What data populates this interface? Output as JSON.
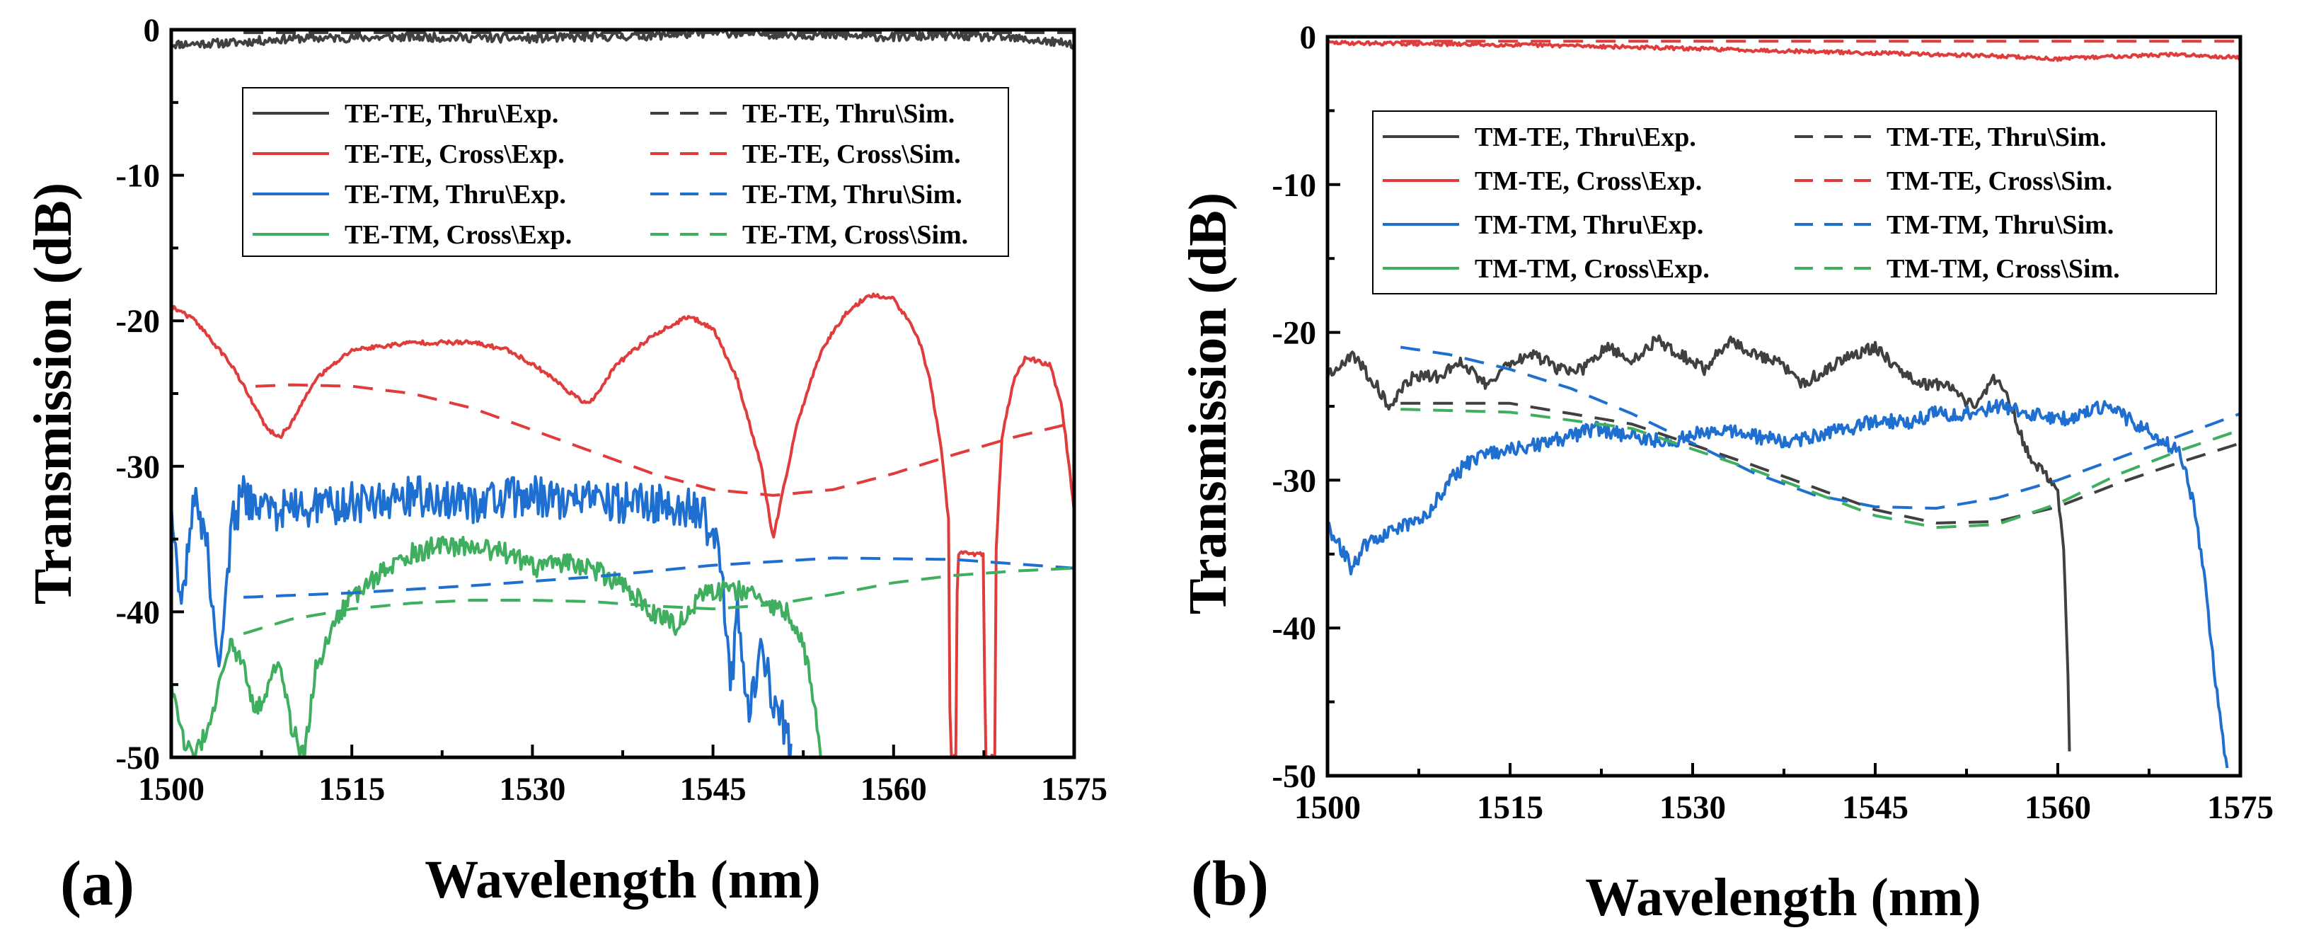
{
  "chart_data": [
    {
      "panel_label": "(a)",
      "type": "line",
      "xlabel": "Wavelength (nm)",
      "ylabel": "Transmission (dB)",
      "xlim": [
        1500,
        1575
      ],
      "ylim": [
        -50,
        0
      ],
      "xticks": [
        "1500",
        "1515",
        "1530",
        "1545",
        "1560",
        "1575"
      ],
      "yticks": [
        "0",
        "-10",
        "-20",
        "-30",
        "-40",
        "-50"
      ],
      "legend_position": "top",
      "series": [
        {
          "name": "TE-TE, Thru\\Exp.",
          "color": "#404040",
          "style": "solid",
          "noise": 0.3,
          "x": [
            1500,
            1505,
            1510,
            1520,
            1530,
            1540,
            1545,
            1550,
            1555,
            1560,
            1565,
            1570,
            1575
          ],
          "y": [
            -1,
            -0.9,
            -0.6,
            -0.5,
            -0.6,
            -0.4,
            -0.2,
            -0.3,
            -0.4,
            -0.5,
            -0.4,
            -0.6,
            -1
          ]
        },
        {
          "name": "TE-TE, Cross\\Exp.",
          "color": "#e03c3c",
          "style": "solid",
          "noise": 0.15,
          "x": [
            1500,
            1502,
            1505,
            1507,
            1508,
            1509,
            1510,
            1512,
            1515,
            1520,
            1525,
            1528,
            1531,
            1534,
            1535,
            1537,
            1540,
            1543,
            1545,
            1547,
            1549,
            1550,
            1551,
            1552,
            1554,
            1556,
            1558,
            1560,
            1562,
            1563,
            1564,
            1564.6,
            1564.7,
            1565.2,
            1565.3,
            1567.5,
            1567.6,
            1568.4,
            1568.5,
            1569,
            1570,
            1571,
            1572,
            1573,
            1574,
            1575
          ],
          "y": [
            -19,
            -20,
            -23,
            -26,
            -27.5,
            -28,
            -27,
            -24,
            -22,
            -21.5,
            -21.5,
            -22,
            -23.5,
            -25.5,
            -25.5,
            -23,
            -21,
            -19.7,
            -20.5,
            -24,
            -30,
            -35,
            -31,
            -27,
            -22,
            -19.5,
            -18.2,
            -18.5,
            -21,
            -24,
            -29,
            -34,
            -50,
            -50,
            -36,
            -36,
            -50,
            -50,
            -36,
            -28,
            -24,
            -22.5,
            -22.8,
            -23,
            -26,
            -33
          ]
        },
        {
          "name": "TE-TM, Thru\\Exp.",
          "color": "#1f6fd1",
          "style": "solid",
          "noise": 1.4,
          "x": [
            1500,
            1500.8,
            1501.5,
            1502,
            1503,
            1504,
            1505,
            1506,
            1508,
            1510,
            1515,
            1520,
            1525,
            1530,
            1535,
            1540,
            1544,
            1545.5,
            1546.5,
            1547,
            1548,
            1549,
            1550,
            1551,
            1551.5
          ],
          "y": [
            -33,
            -40,
            -35,
            -31,
            -36,
            -44,
            -34,
            -32,
            -33,
            -33,
            -32.5,
            -32,
            -32.5,
            -32,
            -32.5,
            -32.5,
            -33,
            -36,
            -45,
            -40,
            -47,
            -42,
            -46,
            -48,
            -50
          ]
        },
        {
          "name": "TE-TM, Cross\\Exp.",
          "color": "#3fae5f",
          "style": "solid",
          "noise": 0.7,
          "x": [
            1500,
            1501,
            1502,
            1503,
            1504,
            1505,
            1506,
            1507,
            1508,
            1509,
            1510,
            1511,
            1512,
            1513,
            1514,
            1515,
            1518,
            1520,
            1522,
            1525,
            1528,
            1530,
            1533,
            1535,
            1538,
            1540,
            1542,
            1544,
            1546,
            1548,
            1549,
            1550,
            1551,
            1552,
            1553,
            1553.5,
            1554
          ],
          "y": [
            -45,
            -49,
            -50,
            -48,
            -45,
            -42,
            -44,
            -47,
            -45,
            -43,
            -48,
            -50,
            -44,
            -42,
            -40,
            -39,
            -37,
            -36,
            -35.5,
            -35.5,
            -36,
            -37,
            -36.5,
            -37,
            -38.5,
            -40,
            -41,
            -39,
            -38.5,
            -38.5,
            -39.5,
            -39.5,
            -40,
            -41,
            -44,
            -47,
            -50
          ]
        },
        {
          "name": "TE-TE, Thru\\Sim.",
          "color": "#404040",
          "style": "dash",
          "x": [
            1506,
            1575
          ],
          "y": [
            -0.2,
            -0.2
          ]
        },
        {
          "name": "TE-TE, Cross\\Sim.",
          "color": "#e03c3c",
          "style": "dash",
          "x": [
            1507,
            1510,
            1515,
            1520,
            1525,
            1530,
            1535,
            1540,
            1545,
            1550,
            1555,
            1560,
            1565,
            1570,
            1575
          ],
          "y": [
            -24.5,
            -24.4,
            -24.5,
            -25,
            -26,
            -27.5,
            -29,
            -30.5,
            -31.6,
            -32,
            -31.6,
            -30.5,
            -29.2,
            -28,
            -27
          ]
        },
        {
          "name": "TE-TM, Thru\\Sim.",
          "color": "#1f6fd1",
          "style": "dash",
          "x": [
            1506,
            1515,
            1525,
            1535,
            1545,
            1555,
            1565,
            1575
          ],
          "y": [
            -39,
            -38.7,
            -38.2,
            -37.6,
            -36.8,
            -36.3,
            -36.4,
            -37
          ]
        },
        {
          "name": "TE-TM, Cross\\Sim.",
          "color": "#3fae5f",
          "style": "dash",
          "x": [
            1506,
            1510,
            1515,
            1520,
            1525,
            1530,
            1535,
            1540,
            1545,
            1550,
            1555,
            1560,
            1565,
            1570,
            1575
          ],
          "y": [
            -41.5,
            -40.5,
            -39.8,
            -39.4,
            -39.2,
            -39.2,
            -39.3,
            -39.6,
            -39.8,
            -39.5,
            -38.8,
            -38,
            -37.5,
            -37.2,
            -37
          ]
        }
      ],
      "legend_entries": [
        {
          "label": "TE-TE, Thru\\Exp.",
          "color": "#404040",
          "style": "solid"
        },
        {
          "label": "TE-TE, Thru\\Sim.",
          "color": "#404040",
          "style": "dash"
        },
        {
          "label": "TE-TE, Cross\\Exp.",
          "color": "#e03c3c",
          "style": "solid"
        },
        {
          "label": "TE-TE, Cross\\Sim.",
          "color": "#e03c3c",
          "style": "dash"
        },
        {
          "label": "TE-TM, Thru\\Exp.",
          "color": "#1f6fd1",
          "style": "solid"
        },
        {
          "label": "TE-TM, Thru\\Sim.",
          "color": "#1f6fd1",
          "style": "dash"
        },
        {
          "label": "TE-TM, Cross\\Exp.",
          "color": "#3fae5f",
          "style": "solid"
        },
        {
          "label": "TE-TM, Cross\\Sim.",
          "color": "#3fae5f",
          "style": "dash"
        }
      ]
    },
    {
      "panel_label": "(b)",
      "type": "line",
      "xlabel": "Wavelength (nm)",
      "ylabel": "Transmission (dB)",
      "xlim": [
        1500,
        1575
      ],
      "ylim": [
        -50,
        0
      ],
      "xticks": [
        "1500",
        "1515",
        "1530",
        "1545",
        "1560",
        "1575"
      ],
      "yticks": [
        "0",
        "-10",
        "-20",
        "-30",
        "-40",
        "-50"
      ],
      "legend_position": "top",
      "series": [
        {
          "name": "TM-TE, Cross\\Exp.",
          "color": "#e03c3c",
          "style": "solid",
          "noise": 0.12,
          "x": [
            1500,
            1510,
            1520,
            1530,
            1540,
            1550,
            1555,
            1560,
            1565,
            1570,
            1575
          ],
          "y": [
            -0.4,
            -0.5,
            -0.6,
            -0.8,
            -1,
            -1.2,
            -1.3,
            -1.5,
            -1.3,
            -1.2,
            -1.4
          ]
        },
        {
          "name": "TM-TE, Thru\\Exp.",
          "color": "#404040",
          "style": "solid",
          "noise": 0.4,
          "x": [
            1500,
            1502,
            1504,
            1505,
            1507,
            1509,
            1511,
            1513,
            1515,
            1517,
            1519,
            1521,
            1523,
            1525,
            1527,
            1529,
            1531,
            1533,
            1535,
            1537,
            1539,
            1541,
            1543,
            1545,
            1547,
            1549,
            1551,
            1553,
            1555,
            1556,
            1557,
            1558,
            1559,
            1560,
            1560.5,
            1560.8,
            1561
          ],
          "y": [
            -23,
            -21.5,
            -23.5,
            -25,
            -23,
            -23,
            -22,
            -23.5,
            -22,
            -21.5,
            -22.5,
            -22.5,
            -21,
            -22,
            -20.5,
            -21.5,
            -22.5,
            -20.5,
            -21.5,
            -22,
            -23.5,
            -22.5,
            -21.5,
            -21,
            -22.5,
            -23.5,
            -23.5,
            -25,
            -23,
            -24.5,
            -27,
            -29,
            -29.5,
            -31,
            -35,
            -42,
            -50
          ]
        },
        {
          "name": "TM-TM, Thru\\Exp.",
          "color": "#1f6fd1",
          "style": "solid",
          "noise": 0.5,
          "x": [
            1500,
            1501,
            1502,
            1503,
            1505,
            1508,
            1510,
            1512,
            1515,
            1518,
            1520,
            1522,
            1525,
            1528,
            1530,
            1532,
            1535,
            1538,
            1540,
            1543,
            1545,
            1548,
            1550,
            1553,
            1555,
            1558,
            1560,
            1562,
            1564,
            1566,
            1568,
            1570,
            1571,
            1572,
            1573,
            1574
          ],
          "y": [
            -33,
            -34.5,
            -36,
            -34.5,
            -33.5,
            -32.5,
            -30,
            -28.5,
            -28,
            -27.5,
            -27,
            -26.5,
            -27,
            -27.5,
            -27,
            -26.5,
            -27,
            -27.5,
            -27,
            -26.5,
            -26,
            -26,
            -25.5,
            -25.5,
            -25,
            -25.5,
            -26,
            -25.5,
            -25,
            -26,
            -27,
            -28,
            -31,
            -36,
            -44,
            -50
          ]
        },
        {
          "name": "TM-TE, Thru\\Sim.",
          "color": "#404040",
          "style": "dash",
          "x": [
            1506,
            1515,
            1525,
            1535,
            1545,
            1550,
            1555,
            1560,
            1565,
            1570,
            1575
          ],
          "y": [
            -24.8,
            -24.8,
            -26.2,
            -29,
            -32,
            -32.9,
            -32.8,
            -31.8,
            -30.2,
            -28.8,
            -27.5
          ]
        },
        {
          "name": "TM-TE, Cross\\Sim.",
          "color": "#e03c3c",
          "style": "dash",
          "x": [
            1506,
            1575
          ],
          "y": [
            -0.3,
            -0.3
          ]
        },
        {
          "name": "TM-TM, Thru\\Sim.",
          "color": "#1f6fd1",
          "style": "dash",
          "x": [
            1506,
            1510,
            1515,
            1520,
            1525,
            1530,
            1535,
            1540,
            1545,
            1550,
            1555,
            1560,
            1565,
            1570,
            1575
          ],
          "y": [
            -21,
            -21.5,
            -22.5,
            -23.8,
            -25.5,
            -27.5,
            -29.5,
            -31,
            -31.8,
            -31.9,
            -31.2,
            -30,
            -28.5,
            -27,
            -25.5
          ]
        },
        {
          "name": "TM-TM, Cross\\Sim.",
          "color": "#3fae5f",
          "style": "dash",
          "x": [
            1506,
            1515,
            1525,
            1535,
            1545,
            1550,
            1555,
            1560,
            1565,
            1570,
            1575
          ],
          "y": [
            -25.2,
            -25.4,
            -26.5,
            -29.3,
            -32.4,
            -33.2,
            -33,
            -31.6,
            -29.6,
            -28,
            -26.6
          ]
        }
      ],
      "legend_entries": [
        {
          "label": "TM-TE, Thru\\Exp.",
          "color": "#404040",
          "style": "solid"
        },
        {
          "label": "TM-TE, Thru\\Sim.",
          "color": "#404040",
          "style": "dash"
        },
        {
          "label": "TM-TE, Cross\\Exp.",
          "color": "#e03c3c",
          "style": "solid"
        },
        {
          "label": "TM-TE, Cross\\Sim.",
          "color": "#e03c3c",
          "style": "dash"
        },
        {
          "label": "TM-TM, Thru\\Exp.",
          "color": "#1f6fd1",
          "style": "solid"
        },
        {
          "label": "TM-TM, Thru\\Sim.",
          "color": "#1f6fd1",
          "style": "dash"
        },
        {
          "label": "TM-TM, Cross\\Exp.",
          "color": "#3fae5f",
          "style": "solid"
        },
        {
          "label": "TM-TM, Cross\\Sim.",
          "color": "#3fae5f",
          "style": "dash"
        }
      ]
    }
  ]
}
